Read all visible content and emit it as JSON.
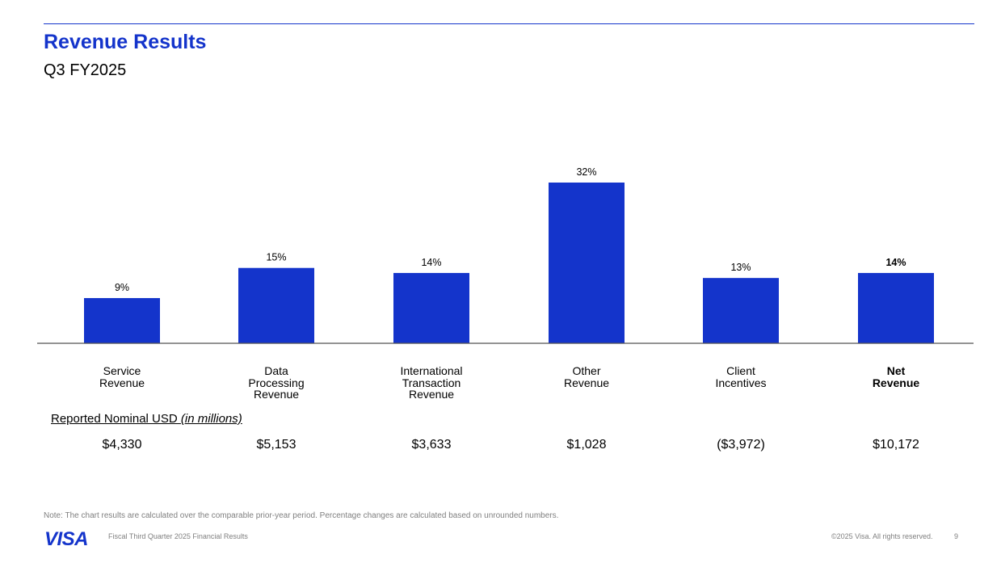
{
  "header": {
    "title": "Revenue Results",
    "subtitle": "Q3 FY2025"
  },
  "chart_data": {
    "type": "bar",
    "categories": [
      "Service\nRevenue",
      "Data\nProcessing\nRevenue",
      "International\nTransaction\nRevenue",
      "Other\nRevenue",
      "Client\nIncentives",
      "Net\nRevenue"
    ],
    "values": [
      9,
      15,
      14,
      32,
      13,
      14
    ],
    "data_labels": [
      "9%",
      "15%",
      "14%",
      "32%",
      "13%",
      "14%"
    ],
    "bold_categories": [
      5
    ],
    "bar_color": "#1434cb",
    "title": "",
    "xlabel": "",
    "ylabel": "",
    "ylim": [
      0,
      32
    ],
    "grid": false
  },
  "reported": {
    "label_main": "Reported Nominal USD ",
    "label_emph": "(in millions)",
    "values": [
      "$4,330",
      "$5,153",
      "$3,633",
      "$1,028",
      "($3,972)",
      "$10,172"
    ]
  },
  "footer": {
    "note": "Note: The chart results are calculated over the comparable prior-year period. Percentage changes are calculated based on unrounded numbers.",
    "logo": "VISA",
    "left_text": "Fiscal Third Quarter 2025 Financial Results",
    "right_text": "©2025 Visa. All rights reserved.",
    "page": "9"
  },
  "colors": {
    "brand": "#1434cb",
    "muted": "#7f7f7f"
  }
}
